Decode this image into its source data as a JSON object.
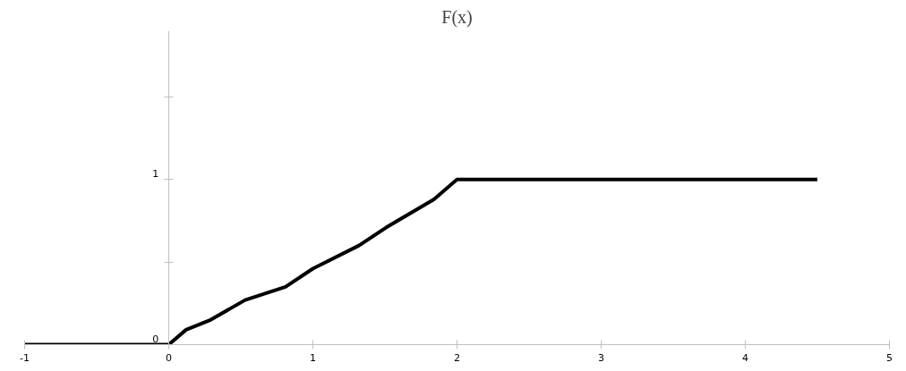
{
  "chart_data": {
    "type": "line",
    "title": "F(x)",
    "x": [
      -1,
      0,
      0.12,
      0.29,
      0.53,
      0.81,
      1.0,
      1.32,
      1.51,
      1.84,
      2,
      4.5
    ],
    "series": [
      {
        "color": "#000000",
        "values": [
          0,
          0,
          0.09,
          0.15,
          0.27,
          0.35,
          0.46,
          0.6,
          0.71,
          0.88,
          1,
          1
        ]
      }
    ],
    "xlim": [
      -1,
      5
    ],
    "xticks": [
      -1,
      0,
      1,
      2,
      3,
      4,
      5
    ],
    "ylim": [
      0,
      1.9
    ],
    "yticks": [
      0,
      {
        "value": 0.5,
        "label": null
      },
      1,
      {
        "value": 1.5,
        "label": null
      }
    ],
    "grid": false,
    "marker": "none",
    "line_style": "solid"
  }
}
